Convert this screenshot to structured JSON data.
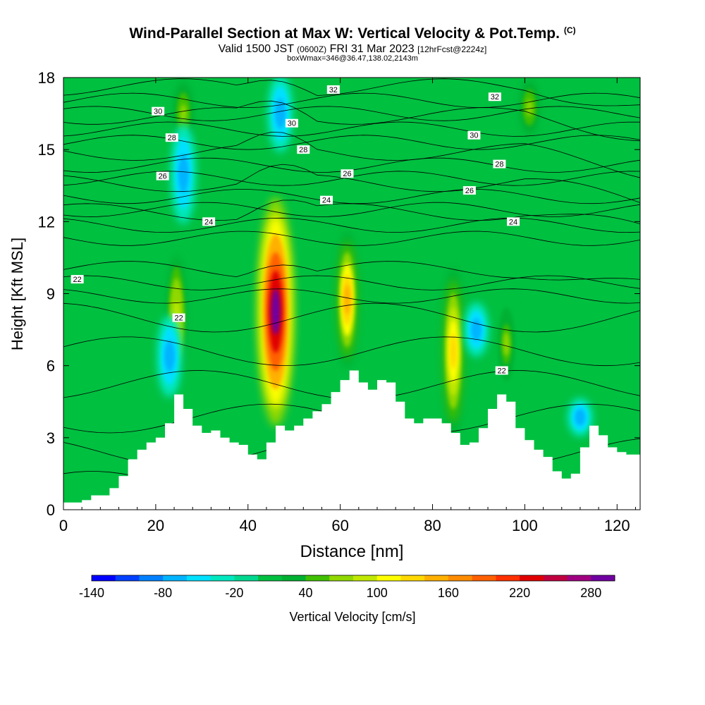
{
  "title": {
    "main": "Wind-Parallel Section at Max W: Vertical Velocity & Pot.Temp.",
    "copyright": "(C)",
    "valid_prefix": "Valid 1500 JST",
    "valid_utc": "(0600Z)",
    "valid_date": "FRI 31 Mar 2023",
    "forecast": "[12hrFcst@2224z]",
    "box": "boxWmax=346@36.47,138.02,2143m"
  },
  "colors": {
    "colorbar": [
      "#0000ff",
      "#0040ff",
      "#0080ff",
      "#00b4ff",
      "#00e0ff",
      "#00e8c0",
      "#00d890",
      "#00c040",
      "#00b030",
      "#40c000",
      "#90d800",
      "#c0e800",
      "#ffff00",
      "#ffd800",
      "#ffb000",
      "#ff8c00",
      "#ff6000",
      "#ff3000",
      "#e00000",
      "#c00040",
      "#a00080",
      "#7000a0"
    ]
  },
  "chart_data": {
    "type": "heatmap",
    "description_fields": "x = distance (nm), y = height (Kft MSL); filled = vertical velocity (cm/s); contours = potential temperature labels",
    "xlabel": "Distance [nm]",
    "ylabel": "Height [Kft MSL]",
    "xlim": [
      0,
      125
    ],
    "ylim": [
      0,
      18
    ],
    "xticks": [
      0,
      20,
      40,
      60,
      80,
      100,
      120
    ],
    "yticks": [
      0,
      3,
      6,
      9,
      12,
      15,
      18
    ],
    "colorbar": {
      "label": "Vertical Velocity [cm/s]",
      "range": [
        -140,
        300
      ],
      "ticks": [
        -140,
        -80,
        -20,
        40,
        100,
        160,
        220,
        280
      ]
    },
    "terrain": [
      [
        0,
        0.3
      ],
      [
        2,
        0.3
      ],
      [
        4,
        0.4
      ],
      [
        6,
        0.6
      ],
      [
        10,
        0.9
      ],
      [
        12,
        1.4
      ],
      [
        14,
        2.1
      ],
      [
        16,
        2.5
      ],
      [
        18,
        2.8
      ],
      [
        20,
        3.0
      ],
      [
        22,
        3.6
      ],
      [
        24,
        4.8
      ],
      [
        26,
        4.2
      ],
      [
        28,
        3.5
      ],
      [
        30,
        3.2
      ],
      [
        32,
        3.3
      ],
      [
        34,
        3.0
      ],
      [
        36,
        2.8
      ],
      [
        38,
        2.7
      ],
      [
        40,
        2.3
      ],
      [
        42,
        2.1
      ],
      [
        44,
        2.8
      ],
      [
        46,
        3.5
      ],
      [
        48,
        3.3
      ],
      [
        50,
        3.5
      ],
      [
        52,
        3.8
      ],
      [
        54,
        4.1
      ],
      [
        56,
        4.4
      ],
      [
        58,
        4.9
      ],
      [
        60,
        5.4
      ],
      [
        62,
        5.8
      ],
      [
        64,
        5.3
      ],
      [
        66,
        5.0
      ],
      [
        68,
        5.4
      ],
      [
        70,
        5.3
      ],
      [
        72,
        4.5
      ],
      [
        74,
        3.8
      ],
      [
        76,
        3.6
      ],
      [
        78,
        3.8
      ],
      [
        80,
        3.8
      ],
      [
        82,
        3.6
      ],
      [
        84,
        3.2
      ],
      [
        86,
        2.7
      ],
      [
        88,
        2.8
      ],
      [
        90,
        3.4
      ],
      [
        92,
        4.2
      ],
      [
        94,
        4.8
      ],
      [
        96,
        4.5
      ],
      [
        98,
        3.4
      ],
      [
        100,
        2.9
      ],
      [
        102,
        2.5
      ],
      [
        104,
        2.2
      ],
      [
        106,
        1.6
      ],
      [
        108,
        1.3
      ],
      [
        110,
        1.5
      ],
      [
        112,
        2.6
      ],
      [
        114,
        3.5
      ],
      [
        116,
        3.1
      ],
      [
        118,
        2.6
      ],
      [
        120,
        2.4
      ],
      [
        122,
        2.3
      ],
      [
        125,
        2.2
      ]
    ],
    "vertical_velocity_features": [
      {
        "x": 46,
        "y_range": [
          3.6,
          12.9
        ],
        "peak": 280
      },
      {
        "x": 61.5,
        "y_range": [
          6.0,
          11.5
        ],
        "peak": 150
      },
      {
        "x": 84.5,
        "y_range": [
          3.2,
          10.0
        ],
        "peak": 130
      },
      {
        "x": 24.5,
        "y_range": [
          5.0,
          11.0
        ],
        "peak": 90
      },
      {
        "x": 26,
        "y_range": [
          15.0,
          18.0
        ],
        "peak": 70
      },
      {
        "x": 101,
        "y_range": [
          15.5,
          18.0
        ],
        "peak": 70
      },
      {
        "x": 96,
        "y_range": [
          4.8,
          9.0
        ],
        "peak": 60
      },
      {
        "x": 23,
        "y_range": [
          4.8,
          8.0
        ],
        "peak": -80
      },
      {
        "x": 26,
        "y_range": [
          12.0,
          16.0
        ],
        "peak": -80
      },
      {
        "x": 47,
        "y_range": [
          15.0,
          18.0
        ],
        "peak": -70
      },
      {
        "x": 89.5,
        "y_range": [
          6.5,
          8.5
        ],
        "peak": -75
      },
      {
        "x": 112,
        "y_range": [
          3.2,
          4.5
        ],
        "peak": -70
      }
    ],
    "isentropes": [
      {
        "label": "22",
        "y": 10.0,
        "shape": "mid"
      },
      {
        "label": "24",
        "y": 12.4,
        "shape": "high"
      },
      {
        "label": "26",
        "y": 13.6,
        "shape": "high"
      },
      {
        "label": "28",
        "y": 14.9,
        "shape": "high"
      },
      {
        "label": "30",
        "y": 16.4,
        "shape": "high"
      },
      {
        "label": "32",
        "y": 17.6,
        "shape": "high"
      }
    ],
    "contour_labels": [
      {
        "text": "32",
        "x": 58.5,
        "y": 17.5
      },
      {
        "text": "32",
        "x": 93.5,
        "y": 17.2
      },
      {
        "text": "30",
        "x": 20.5,
        "y": 16.6
      },
      {
        "text": "30",
        "x": 49.5,
        "y": 16.1
      },
      {
        "text": "30",
        "x": 89,
        "y": 15.6
      },
      {
        "text": "28",
        "x": 23.5,
        "y": 15.5
      },
      {
        "text": "28",
        "x": 52,
        "y": 15.0
      },
      {
        "text": "28",
        "x": 94.5,
        "y": 14.4
      },
      {
        "text": "26",
        "x": 21.5,
        "y": 13.9
      },
      {
        "text": "26",
        "x": 61.5,
        "y": 14.0
      },
      {
        "text": "26",
        "x": 88,
        "y": 13.3
      },
      {
        "text": "24",
        "x": 31.5,
        "y": 12.0
      },
      {
        "text": "24",
        "x": 57,
        "y": 12.9
      },
      {
        "text": "24",
        "x": 97.5,
        "y": 12.0
      },
      {
        "text": "22",
        "x": 3,
        "y": 9.6
      },
      {
        "text": "22",
        "x": 25,
        "y": 8.0
      },
      {
        "text": "22",
        "x": 95,
        "y": 5.8
      }
    ]
  }
}
